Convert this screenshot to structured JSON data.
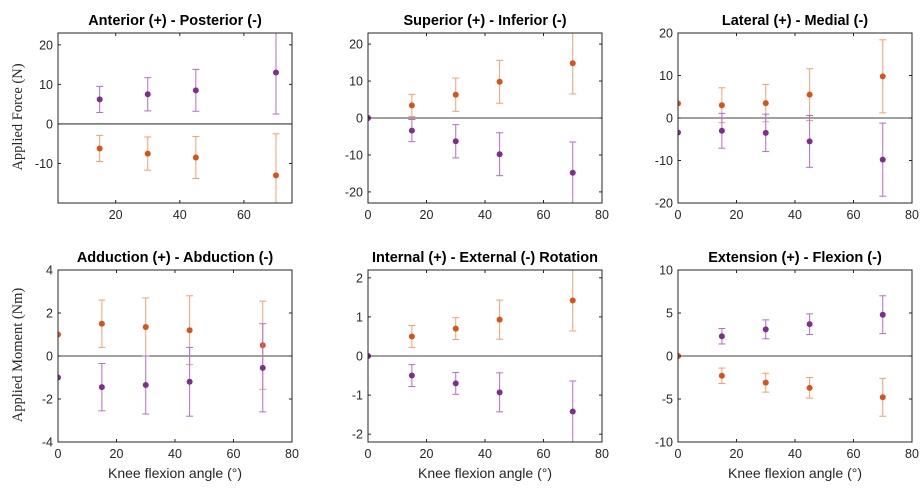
{
  "colors": {
    "orange": "#d95319",
    "orange_bar": "#f0a070",
    "purple": "#7e2f8e",
    "purple_bar": "#b56cc8",
    "axis": "#262626"
  },
  "row_labels": {
    "force": "Applied Force (N)",
    "moment": "Applied Moment (Nm)"
  },
  "x_axis_label": "Knee flexion angle (°)",
  "chart_data": [
    {
      "type": "scatter",
      "title": "Anterior (+) - Posterior (-)",
      "xlabel": "",
      "ylabel": "Applied Force (N)",
      "xlim": [
        2,
        75
      ],
      "ylim": [
        -20,
        23
      ],
      "xticks": [
        20,
        40,
        60
      ],
      "yticks": [
        -10,
        0,
        10,
        20
      ],
      "xtick_labels": [
        "20",
        "40",
        "60"
      ],
      "ytick_labels": [
        "-10",
        "0",
        "10",
        "20"
      ],
      "zero_line": true,
      "series": [
        {
          "color": "purple",
          "x": [
            15,
            30,
            45,
            70
          ],
          "y": [
            6.2,
            7.5,
            8.5,
            13
          ],
          "err": [
            3.3,
            4.2,
            5.3,
            10.5
          ]
        },
        {
          "color": "orange",
          "x": [
            15,
            30,
            45,
            70
          ],
          "y": [
            -6.2,
            -7.5,
            -8.5,
            -13
          ],
          "err": [
            3.3,
            4.2,
            5.3,
            10.5
          ]
        }
      ]
    },
    {
      "type": "scatter",
      "title": "Superior (+) - Inferior (-)",
      "xlabel": "",
      "ylabel": "",
      "xlim": [
        0,
        80
      ],
      "ylim": [
        -23,
        23
      ],
      "xticks": [
        0,
        20,
        40,
        60,
        80
      ],
      "yticks": [
        -20,
        -10,
        0,
        10,
        20
      ],
      "xtick_labels": [
        "0",
        "20",
        "40",
        "60",
        "80"
      ],
      "ytick_labels": [
        "-20",
        "-10",
        "0",
        "10",
        "20"
      ],
      "zero_line": true,
      "series": [
        {
          "color": "orange",
          "x": [
            0,
            15,
            30,
            45,
            70
          ],
          "y": [
            0,
            3.4,
            6.3,
            9.8,
            14.8
          ],
          "err": [
            0,
            3,
            4.5,
            5.8,
            8.3
          ]
        },
        {
          "color": "purple",
          "x": [
            0,
            15,
            30,
            45,
            70
          ],
          "y": [
            0,
            -3.4,
            -6.3,
            -9.8,
            -14.8
          ],
          "err": [
            0,
            3,
            4.5,
            5.8,
            8.3
          ]
        }
      ]
    },
    {
      "type": "scatter",
      "title": "Lateral (+) - Medial (-)",
      "xlabel": "",
      "ylabel": "",
      "xlim": [
        0,
        80
      ],
      "ylim": [
        -20,
        20
      ],
      "xticks": [
        0,
        20,
        40,
        60,
        80
      ],
      "yticks": [
        -20,
        -10,
        0,
        10,
        20
      ],
      "xtick_labels": [
        "0",
        "20",
        "40",
        "60",
        "80"
      ],
      "ytick_labels": [
        "-20",
        "-10",
        "0",
        "10",
        "20"
      ],
      "zero_line": true,
      "series": [
        {
          "color": "orange",
          "x": [
            0,
            15,
            30,
            45,
            70
          ],
          "y": [
            3.4,
            3,
            3.5,
            5.5,
            9.8
          ],
          "err": [
            0,
            4.1,
            4.4,
            6.1,
            8.6
          ]
        },
        {
          "color": "purple",
          "x": [
            0,
            15,
            30,
            45,
            70
          ],
          "y": [
            -3.4,
            -3,
            -3.5,
            -5.5,
            -9.8
          ],
          "err": [
            0,
            4.1,
            4.4,
            6.1,
            8.6
          ]
        }
      ]
    },
    {
      "type": "scatter",
      "title": "Adduction (+) - Abduction (-)",
      "xlabel": "Knee flexion angle (°)",
      "ylabel": "Applied Moment (Nm)",
      "xlim": [
        0,
        80
      ],
      "ylim": [
        -4,
        4
      ],
      "xticks": [
        0,
        20,
        40,
        60,
        80
      ],
      "yticks": [
        -4,
        -2,
        0,
        2,
        4
      ],
      "xtick_labels": [
        "0",
        "20",
        "40",
        "60",
        "80"
      ],
      "ytick_labels": [
        "-4",
        "-2",
        "0",
        "2",
        "4"
      ],
      "zero_line": true,
      "series": [
        {
          "color": "orange",
          "x": [
            0,
            15,
            30,
            45,
            70
          ],
          "y": [
            1,
            1.5,
            1.35,
            1.2,
            0.5
          ],
          "err": [
            0,
            1.1,
            1.35,
            1.6,
            2.05
          ]
        },
        {
          "color": "purple",
          "x": [
            0,
            15,
            30,
            45,
            70
          ],
          "y": [
            -1,
            -1.45,
            -1.35,
            -1.2,
            -0.55
          ],
          "err": [
            0,
            1.1,
            1.35,
            1.6,
            2.05
          ]
        }
      ]
    },
    {
      "type": "scatter",
      "title": "Internal (+) - External (-) Rotation",
      "xlabel": "Knee flexion angle (°)",
      "ylabel": "",
      "xlim": [
        0,
        80
      ],
      "ylim": [
        -2.2,
        2.2
      ],
      "xticks": [
        0,
        20,
        40,
        60,
        80
      ],
      "yticks": [
        -2,
        -1,
        0,
        1,
        2
      ],
      "xtick_labels": [
        "0",
        "20",
        "40",
        "60",
        "80"
      ],
      "ytick_labels": [
        "-2",
        "-1",
        "0",
        "1",
        "2"
      ],
      "zero_line": true,
      "series": [
        {
          "color": "orange",
          "x": [
            0,
            15,
            30,
            45,
            70
          ],
          "y": [
            0,
            0.5,
            0.7,
            0.93,
            1.42
          ],
          "err": [
            0,
            0.28,
            0.28,
            0.5,
            0.78
          ]
        },
        {
          "color": "purple",
          "x": [
            0,
            15,
            30,
            45,
            70
          ],
          "y": [
            0,
            -0.5,
            -0.7,
            -0.93,
            -1.42
          ],
          "err": [
            0,
            0.28,
            0.28,
            0.5,
            0.78
          ]
        }
      ]
    },
    {
      "type": "scatter",
      "title": "Extension (+) - Flexion (-)",
      "xlabel": "Knee flexion angle (°)",
      "ylabel": "",
      "xlim": [
        0,
        80
      ],
      "ylim": [
        -10,
        10
      ],
      "xticks": [
        0,
        20,
        40,
        60,
        80
      ],
      "yticks": [
        -10,
        -5,
        0,
        5,
        10
      ],
      "xtick_labels": [
        "0",
        "20",
        "40",
        "60",
        "80"
      ],
      "ytick_labels": [
        "-10",
        "-5",
        "0",
        "5",
        "10"
      ],
      "zero_line": true,
      "series": [
        {
          "color": "purple",
          "x": [
            0,
            15,
            30,
            45,
            70
          ],
          "y": [
            0,
            2.3,
            3.1,
            3.7,
            4.8
          ],
          "err": [
            0,
            0.9,
            1.1,
            1.2,
            2.2
          ]
        },
        {
          "color": "orange",
          "x": [
            0,
            15,
            30,
            45,
            70
          ],
          "y": [
            0,
            -2.3,
            -3.1,
            -3.7,
            -4.8
          ],
          "err": [
            0,
            0.9,
            1.1,
            1.2,
            2.2
          ]
        }
      ]
    }
  ]
}
